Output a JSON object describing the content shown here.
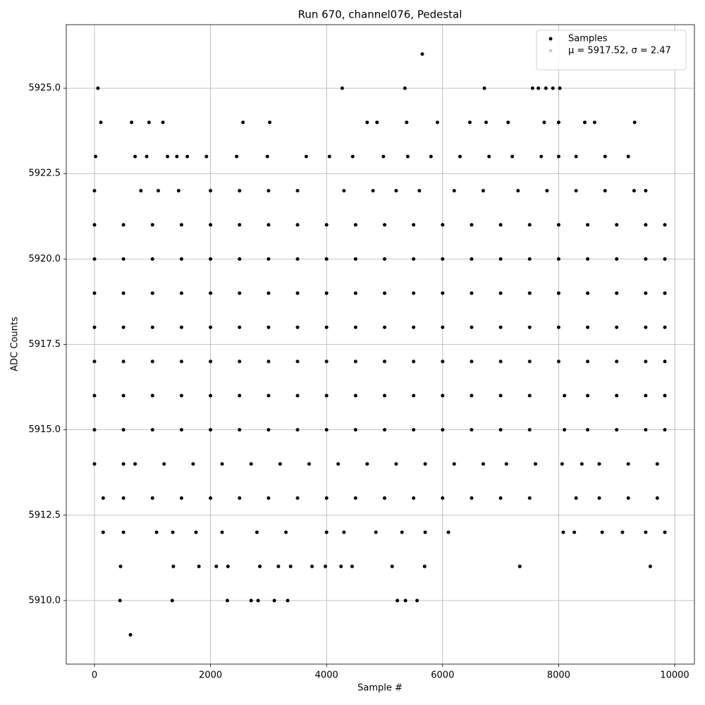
{
  "chart_data": {
    "type": "scatter",
    "title": "Run 670, channel076, Pedestal",
    "xlabel": "Sample #",
    "ylabel": "ADC Counts",
    "xlim": [
      -486,
      10340
    ],
    "ylim": [
      5908.14,
      5926.86
    ],
    "xticks": [
      0,
      2000,
      4000,
      6000,
      8000,
      10000
    ],
    "yticks": [
      {
        "value": 5910,
        "label": "5910.0"
      },
      {
        "value": 5912.5,
        "label": "5912.5"
      },
      {
        "value": 5915,
        "label": "5915.0"
      },
      {
        "value": 5917.5,
        "label": "5917.5"
      },
      {
        "value": 5920,
        "label": "5920.0"
      },
      {
        "value": 5922.5,
        "label": "5922.5"
      },
      {
        "value": 5925,
        "label": "5925.0"
      }
    ],
    "grid": true,
    "legend": "upper right",
    "series": [
      {
        "name": "Samples",
        "color": "#000000",
        "x": [
          60,
          4270,
          5350,
          6720,
          7550,
          7650,
          7780,
          7900,
          8020,
          5650,
          110,
          640,
          940,
          1180,
          2560,
          3020,
          4700,
          4870,
          5380,
          5910,
          6470,
          6750,
          7130,
          7750,
          8000,
          8450,
          8620,
          9310,
          20,
          700,
          900,
          1260,
          1420,
          1600,
          1930,
          2450,
          2980,
          3650,
          4050,
          4450,
          4980,
          5400,
          5800,
          6300,
          6800,
          7200,
          7700,
          8000,
          8300,
          8800,
          9200,
          0,
          800,
          1100,
          1450,
          2000,
          2500,
          3000,
          3500,
          4300,
          4800,
          5200,
          5600,
          6200,
          6700,
          7300,
          7800,
          8300,
          8800,
          9300,
          9500,
          0,
          500,
          1000,
          1500,
          2000,
          2500,
          3000,
          3500,
          4000,
          4500,
          5000,
          5500,
          6000,
          6500,
          7000,
          7500,
          8000,
          8500,
          9000,
          9500,
          9830,
          0,
          500,
          1000,
          1500,
          2000,
          2500,
          3000,
          3500,
          4000,
          4500,
          5000,
          5500,
          6000,
          6500,
          7000,
          7500,
          8000,
          8500,
          9000,
          9500,
          9830,
          0,
          500,
          1000,
          1500,
          2000,
          2500,
          3000,
          3500,
          4000,
          4500,
          5000,
          5500,
          6000,
          6500,
          7000,
          7500,
          8000,
          8500,
          9000,
          9500,
          9830,
          0,
          500,
          1000,
          1500,
          2000,
          2500,
          3000,
          3500,
          4000,
          4500,
          5000,
          5500,
          6000,
          6500,
          7000,
          7500,
          8000,
          8500,
          9000,
          9500,
          9830,
          0,
          500,
          1000,
          1500,
          2000,
          2500,
          3000,
          3500,
          4000,
          4500,
          5000,
          5500,
          6000,
          6500,
          7000,
          7500,
          8000,
          8500,
          9000,
          9500,
          9830,
          0,
          500,
          1000,
          1500,
          2000,
          2500,
          3000,
          3500,
          4000,
          4500,
          5000,
          5500,
          6000,
          6500,
          7000,
          7500,
          8100,
          8500,
          9000,
          9500,
          9830,
          0,
          500,
          1000,
          1500,
          2000,
          2500,
          3000,
          3500,
          4000,
          4500,
          5000,
          5500,
          6000,
          6500,
          7000,
          7500,
          8100,
          8500,
          9000,
          9500,
          9830,
          0,
          500,
          700,
          1200,
          1700,
          2200,
          2700,
          3200,
          3700,
          4200,
          4700,
          5200,
          5700,
          6200,
          6700,
          7100,
          7600,
          8060,
          8400,
          8700,
          9200,
          9700,
          150,
          500,
          1000,
          1500,
          2000,
          2500,
          3000,
          3500,
          4000,
          4500,
          5000,
          5500,
          6000,
          6500,
          7000,
          7500,
          8300,
          8700,
          9200,
          9700,
          150,
          500,
          1070,
          1350,
          1750,
          2200,
          2800,
          3300,
          4000,
          4300,
          4850,
          5300,
          5700,
          6100,
          8080,
          8270,
          8750,
          9100,
          9500,
          9830,
          450,
          1360,
          1800,
          2100,
          2300,
          2850,
          3170,
          3380,
          3750,
          3980,
          4250,
          4440,
          5130,
          5690,
          7330,
          9580,
          440,
          1340,
          2290,
          2700,
          2820,
          3100,
          3330,
          5220,
          5360,
          5560,
          620
        ],
        "values": [
          5925,
          5925,
          5925,
          5925,
          5925,
          5925,
          5925,
          5925,
          5925,
          5926,
          5924,
          5924,
          5924,
          5924,
          5924,
          5924,
          5924,
          5924,
          5924,
          5924,
          5924,
          5924,
          5924,
          5924,
          5924,
          5924,
          5924,
          5924,
          5923,
          5923,
          5923,
          5923,
          5923,
          5923,
          5923,
          5923,
          5923,
          5923,
          5923,
          5923,
          5923,
          5923,
          5923,
          5923,
          5923,
          5923,
          5923,
          5923,
          5923,
          5923,
          5923,
          5922,
          5922,
          5922,
          5922,
          5922,
          5922,
          5922,
          5922,
          5922,
          5922,
          5922,
          5922,
          5922,
          5922,
          5922,
          5922,
          5922,
          5922,
          5922,
          5922,
          5921,
          5921,
          5921,
          5921,
          5921,
          5921,
          5921,
          5921,
          5921,
          5921,
          5921,
          5921,
          5921,
          5921,
          5921,
          5921,
          5921,
          5921,
          5921,
          5921,
          5921,
          5920,
          5920,
          5920,
          5920,
          5920,
          5920,
          5920,
          5920,
          5920,
          5920,
          5920,
          5920,
          5920,
          5920,
          5920,
          5920,
          5920,
          5920,
          5920,
          5920,
          5920,
          5919,
          5919,
          5919,
          5919,
          5919,
          5919,
          5919,
          5919,
          5919,
          5919,
          5919,
          5919,
          5919,
          5919,
          5919,
          5919,
          5919,
          5919,
          5919,
          5919,
          5919,
          5918,
          5918,
          5918,
          5918,
          5918,
          5918,
          5918,
          5918,
          5918,
          5918,
          5918,
          5918,
          5918,
          5918,
          5918,
          5918,
          5918,
          5918,
          5918,
          5918,
          5918,
          5917,
          5917,
          5917,
          5917,
          5917,
          5917,
          5917,
          5917,
          5917,
          5917,
          5917,
          5917,
          5917,
          5917,
          5917,
          5917,
          5917,
          5917,
          5917,
          5917,
          5917,
          5916,
          5916,
          5916,
          5916,
          5916,
          5916,
          5916,
          5916,
          5916,
          5916,
          5916,
          5916,
          5916,
          5916,
          5916,
          5916,
          5916,
          5916,
          5916,
          5916,
          5916,
          5915,
          5915,
          5915,
          5915,
          5915,
          5915,
          5915,
          5915,
          5915,
          5915,
          5915,
          5915,
          5915,
          5915,
          5915,
          5915,
          5915,
          5915,
          5915,
          5915,
          5915,
          5914,
          5914,
          5914,
          5914,
          5914,
          5914,
          5914,
          5914,
          5914,
          5914,
          5914,
          5914,
          5914,
          5914,
          5914,
          5914,
          5914,
          5914,
          5914,
          5914,
          5914,
          5914,
          5913,
          5913,
          5913,
          5913,
          5913,
          5913,
          5913,
          5913,
          5913,
          5913,
          5913,
          5913,
          5913,
          5913,
          5913,
          5913,
          5913,
          5913,
          5913,
          5913,
          5912,
          5912,
          5912,
          5912,
          5912,
          5912,
          5912,
          5912,
          5912,
          5912,
          5912,
          5912,
          5912,
          5912,
          5912,
          5912,
          5912,
          5912,
          5912,
          5912,
          5911,
          5911,
          5911,
          5911,
          5911,
          5911,
          5911,
          5911,
          5911,
          5911,
          5911,
          5911,
          5911,
          5911,
          5911,
          5911,
          5910,
          5910,
          5910,
          5910,
          5910,
          5910,
          5910,
          5910,
          5910,
          5910,
          5909
        ]
      },
      {
        "name": "μ = 5917.52, σ = 2.47",
        "color": "#cccccc",
        "x": [],
        "values": []
      }
    ]
  }
}
